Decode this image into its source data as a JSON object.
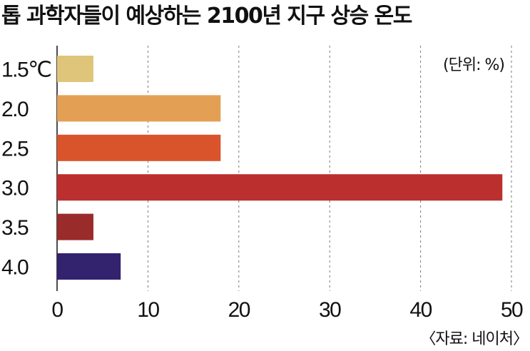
{
  "chart_data": {
    "type": "bar",
    "orientation": "horizontal",
    "title": "톱 과학자들이 예상하는 2100년 지구 상승 온도",
    "unit_note": "(단위: %)",
    "source": "〈자료: 네이처〉",
    "categories": [
      "1.5℃",
      "2.0",
      "2.5",
      "3.0",
      "3.5",
      "4.0"
    ],
    "values": [
      4,
      18,
      18,
      49,
      4,
      7
    ],
    "colors": [
      "#dfc57a",
      "#e3a055",
      "#d9542b",
      "#bb2f2e",
      "#9a2b2b",
      "#33226e"
    ],
    "xlim": [
      0,
      50
    ],
    "xticks": [
      0,
      10,
      20,
      30,
      40,
      50
    ],
    "grid": true
  }
}
